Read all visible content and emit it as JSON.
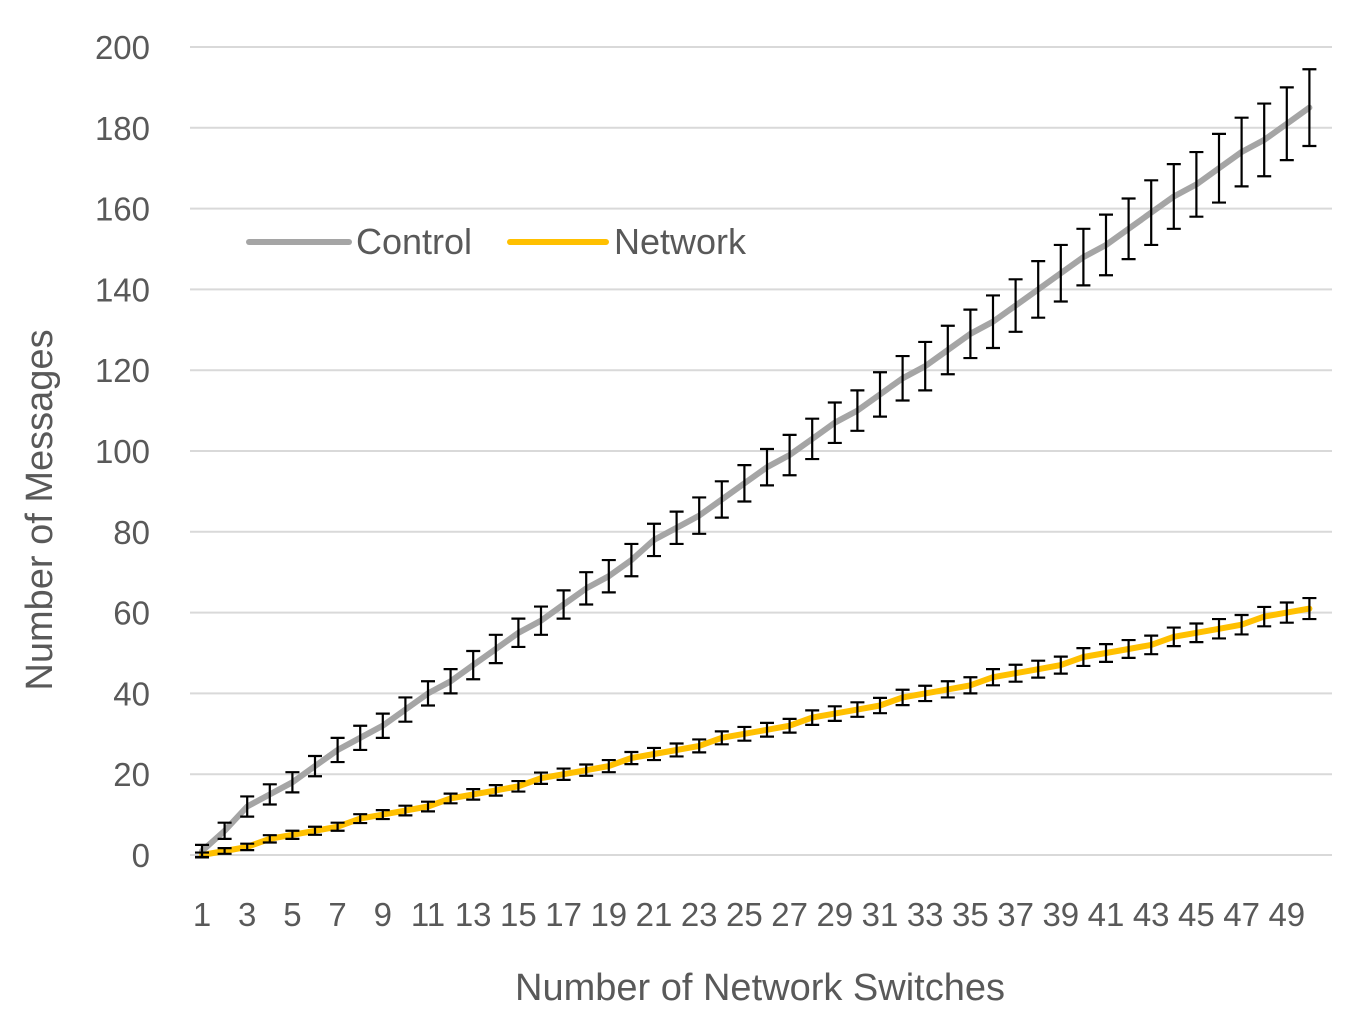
{
  "chart_data": {
    "type": "line",
    "title": "",
    "xlabel": "Number of Network Switches",
    "ylabel": "Number of Messages",
    "ylim": [
      0,
      200
    ],
    "yticks": [
      0,
      20,
      40,
      60,
      80,
      100,
      120,
      140,
      160,
      180,
      200
    ],
    "x": [
      1,
      2,
      3,
      4,
      5,
      6,
      7,
      8,
      9,
      10,
      11,
      12,
      13,
      14,
      15,
      16,
      17,
      18,
      19,
      20,
      21,
      22,
      23,
      24,
      25,
      26,
      27,
      28,
      29,
      30,
      31,
      32,
      33,
      34,
      35,
      36,
      37,
      38,
      39,
      40,
      41,
      42,
      43,
      44,
      45,
      46,
      47,
      48,
      49,
      50
    ],
    "x_tick_labels": [
      "1",
      "3",
      "5",
      "7",
      "9",
      "11",
      "13",
      "15",
      "17",
      "19",
      "21",
      "23",
      "25",
      "27",
      "29",
      "31",
      "33",
      "35",
      "37",
      "39",
      "41",
      "43",
      "45",
      "47",
      "49"
    ],
    "grid": true,
    "legend_position": "top-left",
    "series": [
      {
        "name": "Control",
        "color": "#a5a5a5",
        "values": [
          1,
          6,
          12,
          15,
          18,
          22,
          26,
          29,
          32,
          36,
          40,
          43,
          47,
          51,
          55,
          58,
          62,
          66,
          69,
          73,
          78,
          81,
          84,
          88,
          92,
          96,
          99,
          103,
          107,
          110,
          114,
          118,
          121,
          125,
          129,
          132,
          136,
          140,
          144,
          148,
          151,
          155,
          159,
          163,
          166,
          170,
          174,
          177,
          181,
          185
        ],
        "error": [
          1.5,
          2,
          2.5,
          2.5,
          2.5,
          2.5,
          3,
          3,
          3,
          3,
          3,
          3,
          3.5,
          3.5,
          3.5,
          3.5,
          3.5,
          4,
          4,
          4,
          4,
          4,
          4.5,
          4.5,
          4.5,
          4.5,
          5,
          5,
          5,
          5,
          5.5,
          5.5,
          6,
          6,
          6,
          6.5,
          6.5,
          7,
          7,
          7,
          7.5,
          7.5,
          8,
          8,
          8,
          8.5,
          8.5,
          9,
          9,
          9.5
        ]
      },
      {
        "name": "Network",
        "color": "#ffc000",
        "values": [
          0,
          1,
          2,
          4,
          5,
          6,
          7,
          9,
          10,
          11,
          12,
          14,
          15,
          16,
          17,
          19,
          20,
          21,
          22,
          24,
          25,
          26,
          27,
          29,
          30,
          31,
          32,
          34,
          35,
          36,
          37,
          39,
          40,
          41,
          42,
          44,
          45,
          46,
          47,
          49,
          50,
          51,
          52,
          54,
          55,
          56,
          57,
          59,
          60,
          61
        ],
        "error": [
          0.6,
          0.7,
          0.8,
          0.9,
          1,
          1,
          1,
          1.1,
          1.1,
          1.2,
          1.2,
          1.2,
          1.3,
          1.3,
          1.3,
          1.4,
          1.4,
          1.4,
          1.5,
          1.5,
          1.5,
          1.6,
          1.6,
          1.6,
          1.7,
          1.7,
          1.7,
          1.8,
          1.8,
          1.8,
          1.9,
          1.9,
          1.9,
          2,
          2,
          2,
          2.1,
          2.1,
          2.1,
          2.2,
          2.2,
          2.2,
          2.3,
          2.3,
          2.3,
          2.4,
          2.4,
          2.4,
          2.5,
          2.6
        ]
      }
    ]
  }
}
